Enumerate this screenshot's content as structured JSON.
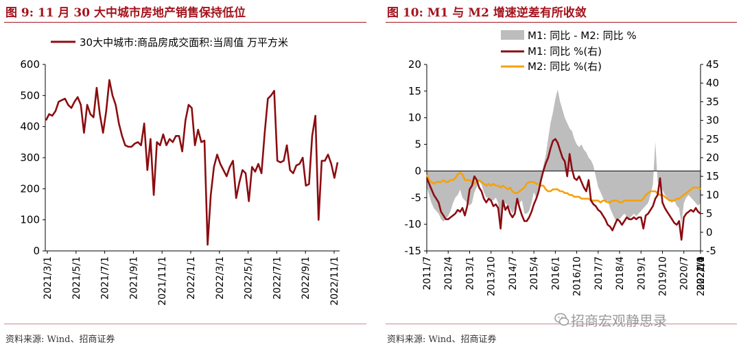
{
  "left": {
    "title": "图 9:  11 月 30 大中城市房地产销售保持低位",
    "source": "资料来源: Wind、招商证券"
  },
  "right": {
    "title": "图 10:  M1 与 M2 增速逆差有所收敛",
    "source": "资料来源: Wind、招商证券"
  },
  "watermark": "招商宏观静思录",
  "colors": {
    "title": "#a5131d",
    "dark_red": "#8b0c10",
    "orange": "#f5a10a",
    "gray_area": "#bdbdbd"
  },
  "chart_data": [
    {
      "type": "line",
      "title": "",
      "xlabel": "",
      "ylabel": "",
      "ylim": [
        0,
        600
      ],
      "yticks": [
        "0",
        "100",
        "200",
        "300",
        "400",
        "500",
        "600"
      ],
      "xticks": [
        "2021/3/1",
        "2021/5/1",
        "2021/7/1",
        "2021/9/1",
        "2021/11/1",
        "2022/1/1",
        "2022/3/1",
        "2022/5/1",
        "2022/7/1",
        "2022/9/1",
        "2022/11/1"
      ],
      "legend_position": "top",
      "grid": false,
      "series": [
        {
          "name": "30大中城市:商品房成交面积:当周值  万平方米",
          "color": "#8b0c10",
          "values": [
            420,
            440,
            435,
            450,
            480,
            485,
            490,
            470,
            460,
            480,
            495,
            470,
            380,
            470,
            440,
            430,
            525,
            440,
            380,
            450,
            550,
            500,
            470,
            410,
            370,
            340,
            335,
            335,
            345,
            350,
            340,
            410,
            260,
            360,
            180,
            350,
            340,
            375,
            340,
            360,
            350,
            370,
            370,
            320,
            420,
            470,
            460,
            340,
            390,
            350,
            355,
            20,
            180,
            270,
            310,
            280,
            260,
            240,
            270,
            290,
            170,
            220,
            260,
            250,
            160,
            270,
            255,
            280,
            250,
            380,
            490,
            500,
            515,
            290,
            285,
            290,
            340,
            260,
            250,
            275,
            280,
            300,
            210,
            215,
            370,
            435,
            100,
            290,
            290,
            310,
            280,
            235,
            285
          ]
        }
      ]
    },
    {
      "type": "line",
      "title": "",
      "xlabel": "",
      "ylabel": "",
      "ylim": [
        -15,
        20
      ],
      "y2lim": [
        -5,
        45
      ],
      "yticks": [
        "-15",
        "-10",
        "-5",
        "0",
        "5",
        "10",
        "15",
        "20"
      ],
      "y2ticks": [
        "-5",
        "0",
        "5",
        "10",
        "15",
        "20",
        "25",
        "30",
        "35",
        "40",
        "45"
      ],
      "xticks": [
        "2011/7",
        "2012/4",
        "2013/1",
        "2013/10",
        "2014/7",
        "2015/4",
        "2016/1",
        "2016/10",
        "2017/7",
        "2018/4",
        "2019/1",
        "2019/10",
        "2020/7",
        "2021/4",
        "2022/1",
        "2022/10"
      ],
      "legend_position": "top",
      "grid": false,
      "x_start": "2011-07",
      "series": [
        {
          "name": "M1: 同比 - M2: 同比 %",
          "type": "area",
          "axis": "left",
          "color": "#bdbdbd",
          "values": [
            -3.0,
            -4.5,
            -6.0,
            -7.0,
            -7.5,
            -8.0,
            -9.0,
            -9.5,
            -9.0,
            -8.5,
            -7.5,
            -6.0,
            -5.0,
            -4.5,
            -3.5,
            -5.0,
            -5.5,
            -6.0,
            -6.5,
            -6.0,
            -4.0,
            -3.0,
            -2.0,
            -2.5,
            -4.0,
            -5.0,
            -5.0,
            -5.5,
            -5.5,
            -5.0,
            -6.0,
            -11.0,
            -6.5,
            -6.0,
            -6.5,
            -7.0,
            -8.0,
            -7.0,
            -5.5,
            -6.0,
            -5.5,
            -8.0,
            -8.0,
            -7.5,
            -6.0,
            -4.0,
            -5.0,
            -4.0,
            -1.5,
            1.0,
            3.0,
            6.0,
            9.0,
            11.0,
            13.5,
            15.3,
            13.0,
            11.5,
            10.0,
            9.0,
            8.0,
            7.5,
            6.0,
            5.0,
            4.5,
            5.0,
            4.0,
            3.5,
            2.5,
            2.0,
            1.0,
            -1.0,
            -3.0,
            -4.0,
            -5.0,
            -6.0,
            -5.5,
            -7.0,
            -8.0,
            -9.0,
            -9.5,
            -9.0,
            -8.5,
            -8.0,
            -8.5,
            -9.0,
            -8.5,
            -8.0,
            -8.5,
            -8.0,
            -7.5,
            -7.0,
            -6.5,
            -6.0,
            -4.5,
            -2.5,
            5.5,
            -2.0,
            -3.0,
            -3.5,
            -4.5,
            -5.0,
            -5.5,
            -6.0,
            -5.5,
            -6.5,
            -7.0,
            -10.0,
            -6.0,
            -5.0,
            -4.5,
            -5.0,
            -5.5,
            -6.0,
            -6.5,
            -6.0
          ]
        },
        {
          "name": "M1: 同比 %(右)",
          "type": "line",
          "axis": "right",
          "color": "#8b0c10",
          "values": [
            14.5,
            13.0,
            11.5,
            10.0,
            9.0,
            8.0,
            5.5,
            4.5,
            3.5,
            3.5,
            4.0,
            4.5,
            5.0,
            6.0,
            5.5,
            6.5,
            4.5,
            7.0,
            11.5,
            12.5,
            15.0,
            14.0,
            12.0,
            11.0,
            9.0,
            8.0,
            9.0,
            8.5,
            7.0,
            7.5,
            6.5,
            1.0,
            8.5,
            6.0,
            7.0,
            5.0,
            4.0,
            5.0,
            9.0,
            6.5,
            4.5,
            3.0,
            3.0,
            4.0,
            5.5,
            7.5,
            9.0,
            11.0,
            14.0,
            16.5,
            18.5,
            20.0,
            22.5,
            24.5,
            25.0,
            24.0,
            22.0,
            20.0,
            19.0,
            15.0,
            21.0,
            17.0,
            14.5,
            14.0,
            15.0,
            13.5,
            12.0,
            11.0,
            14.0,
            8.5,
            7.5,
            7.0,
            6.0,
            5.5,
            4.5,
            3.5,
            2.0,
            1.5,
            0.5,
            2.0,
            3.5,
            3.0,
            2.0,
            3.0,
            4.0,
            3.5,
            3.5,
            4.0,
            3.5,
            4.0,
            4.0,
            1.0,
            4.5,
            5.0,
            6.0,
            7.0,
            9.0,
            10.0,
            14.5,
            8.0,
            6.5,
            5.5,
            4.5,
            3.5,
            2.5,
            2.0,
            3.0,
            -2.0,
            4.0,
            5.0,
            5.5,
            6.0,
            5.5,
            6.5,
            5.5,
            5.0
          ]
        },
        {
          "name": "M2: 同比 %(右)",
          "type": "line",
          "axis": "right",
          "color": "#f5a10a",
          "values": [
            15.5,
            14.0,
            13.5,
            13.0,
            13.5,
            13.5,
            13.5,
            14.0,
            13.5,
            13.5,
            14.0,
            14.0,
            14.5,
            15.5,
            16.0,
            15.5,
            14.0,
            14.0,
            14.0,
            13.5,
            13.0,
            13.5,
            14.0,
            13.5,
            13.0,
            12.5,
            13.0,
            12.5,
            13.0,
            12.5,
            12.5,
            12.0,
            12.5,
            12.0,
            11.5,
            12.0,
            11.0,
            10.5,
            10.5,
            11.0,
            11.5,
            12.0,
            13.0,
            13.5,
            13.5,
            13.5,
            13.0,
            13.0,
            12.5,
            12.5,
            11.5,
            11.0,
            11.0,
            11.5,
            11.5,
            11.5,
            11.0,
            11.0,
            10.5,
            10.5,
            10.0,
            10.0,
            9.5,
            9.5,
            9.5,
            9.0,
            9.0,
            9.0,
            9.0,
            8.5,
            8.5,
            8.5,
            8.5,
            8.0,
            8.5,
            8.5,
            8.0,
            8.0,
            8.5,
            8.5,
            8.5,
            8.0,
            8.0,
            8.5,
            8.5,
            8.5,
            8.5,
            8.5,
            8.5,
            8.5,
            8.5,
            9.0,
            10.0,
            10.5,
            11.0,
            11.0,
            11.0,
            10.5,
            10.0,
            10.0,
            9.5,
            9.0,
            8.5,
            8.5,
            8.5,
            9.0,
            9.0,
            9.5,
            10.0,
            10.5,
            11.0,
            11.5,
            12.0,
            12.0,
            12.0,
            11.5
          ]
        }
      ]
    }
  ]
}
